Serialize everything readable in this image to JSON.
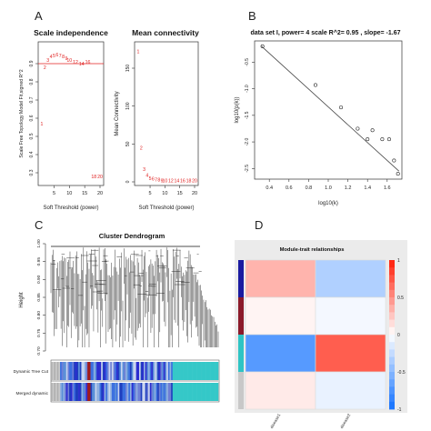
{
  "panel_letters": [
    "A",
    "B",
    "C",
    "D"
  ],
  "chart_data": [
    {
      "panel": "A-left",
      "type": "scatter",
      "title": "Scale independence",
      "xlabel": "Soft Threshold (power)",
      "ylabel": "Scale Free Topology Model Fit,signed R^2",
      "xlim": [
        1,
        20
      ],
      "ylim": [
        0.25,
        1.0
      ],
      "xticks": [
        "5",
        "10",
        "15",
        "20"
      ],
      "yticks": [
        "0.3",
        "0.4",
        "0.5",
        "0.6",
        "0.7",
        "0.8",
        "0.9"
      ],
      "hline": 0.9,
      "points": [
        {
          "label": "1",
          "x": 1,
          "y": 0.57
        },
        {
          "label": "2",
          "x": 2,
          "y": 0.88
        },
        {
          "label": "3",
          "x": 3,
          "y": 0.92
        },
        {
          "label": "4",
          "x": 4,
          "y": 0.94
        },
        {
          "label": "5",
          "x": 5,
          "y": 0.945
        },
        {
          "label": "6",
          "x": 6,
          "y": 0.95
        },
        {
          "label": "7",
          "x": 7,
          "y": 0.945
        },
        {
          "label": "8",
          "x": 8,
          "y": 0.94
        },
        {
          "label": "9",
          "x": 9,
          "y": 0.93
        },
        {
          "label": "10",
          "x": 10,
          "y": 0.92
        },
        {
          "label": "12",
          "x": 12,
          "y": 0.91
        },
        {
          "label": "14",
          "x": 14,
          "y": 0.9
        },
        {
          "label": "16",
          "x": 16,
          "y": 0.91
        },
        {
          "label": "18",
          "x": 18,
          "y": 0.28
        },
        {
          "label": "20",
          "x": 20,
          "y": 0.28
        }
      ]
    },
    {
      "panel": "A-right",
      "type": "scatter",
      "title": "Mean connectivity",
      "xlabel": "Soft Threshold (power)",
      "ylabel": "Mean Connectivity",
      "xlim": [
        1,
        20
      ],
      "ylim": [
        0,
        180
      ],
      "xticks": [
        "5",
        "10",
        "15",
        "20"
      ],
      "yticks": [
        "0",
        "50",
        "100",
        "150"
      ],
      "points": [
        {
          "label": "1",
          "x": 1,
          "y": 172
        },
        {
          "label": "2",
          "x": 2,
          "y": 45
        },
        {
          "label": "3",
          "x": 3,
          "y": 17
        },
        {
          "label": "4",
          "x": 4,
          "y": 9
        },
        {
          "label": "5",
          "x": 5,
          "y": 5
        },
        {
          "label": "6",
          "x": 6,
          "y": 4
        },
        {
          "label": "7",
          "x": 7,
          "y": 3
        },
        {
          "label": "8",
          "x": 8,
          "y": 3
        },
        {
          "label": "9",
          "x": 9,
          "y": 2
        },
        {
          "label": "10",
          "x": 10,
          "y": 2
        },
        {
          "label": "12",
          "x": 12,
          "y": 2
        },
        {
          "label": "14",
          "x": 14,
          "y": 2
        },
        {
          "label": "16",
          "x": 16,
          "y": 2
        },
        {
          "label": "18",
          "x": 18,
          "y": 2
        },
        {
          "label": "20",
          "x": 20,
          "y": 2
        }
      ]
    },
    {
      "panel": "B",
      "type": "scatter",
      "title": "data set I, power= 4  scale R^2= 0.95 , slope= -1.67",
      "xlabel": "log10(k)",
      "ylabel": "log10(p(k))",
      "xlim": [
        0.25,
        1.75
      ],
      "ylim": [
        -2.7,
        -0.1
      ],
      "xticks": [
        "0.4",
        "0.6",
        "0.8",
        "1.0",
        "1.2",
        "1.4",
        "1.6"
      ],
      "yticks": [
        "-2.5",
        "-2.0",
        "-1.5",
        "-1.0",
        "-0.5"
      ],
      "fit_line": {
        "x1": 0.32,
        "y1": -0.2,
        "x2": 1.72,
        "y2": -2.55
      },
      "points": [
        {
          "x": 0.33,
          "y": -0.2
        },
        {
          "x": 0.87,
          "y": -0.93
        },
        {
          "x": 1.13,
          "y": -1.35
        },
        {
          "x": 1.3,
          "y": -1.75
        },
        {
          "x": 1.4,
          "y": -1.95
        },
        {
          "x": 1.45,
          "y": -1.78
        },
        {
          "x": 1.55,
          "y": -1.95
        },
        {
          "x": 1.62,
          "y": -1.95
        },
        {
          "x": 1.67,
          "y": -2.35
        },
        {
          "x": 1.71,
          "y": -2.6
        }
      ]
    },
    {
      "panel": "C",
      "type": "dendrogram",
      "title": "Cluster Dendrogram",
      "ylabel": "Height",
      "ylim": [
        0.7,
        1.0
      ],
      "yticks": [
        "0.70",
        "0.75",
        "0.80",
        "0.85",
        "0.90",
        "0.95",
        "1.00"
      ],
      "row_labels": [
        "Dynamic Tree Cut",
        "Merged dynamic"
      ]
    },
    {
      "panel": "D",
      "type": "heatmap",
      "title": "Module-trait relationships",
      "columns": [
        "disease1",
        "disease2"
      ],
      "module_colors": [
        "#1a1aa0",
        "#8b1a2a",
        "#2ec4c4",
        "#c8c8c8"
      ],
      "values": [
        [
          0.35,
          -0.35
        ],
        [
          0.05,
          -0.05
        ],
        [
          -0.75,
          0.75
        ],
        [
          0.1,
          -0.1
        ]
      ],
      "legend_ticks": [
        "1",
        "0.5",
        "0",
        "-0.5",
        "-1"
      ]
    }
  ]
}
